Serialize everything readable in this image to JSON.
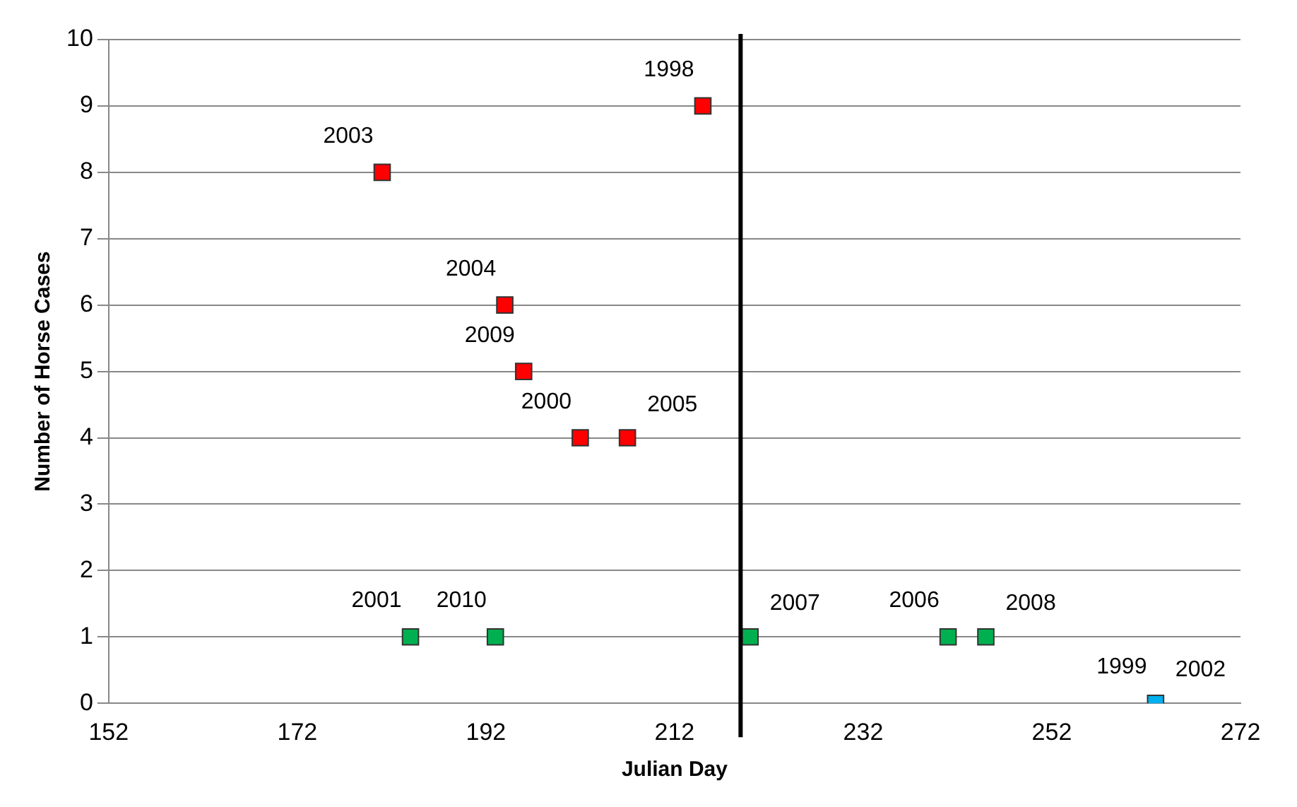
{
  "chart_data": {
    "type": "scatter",
    "xlabel": "Julian Day",
    "ylabel": "Number of Horse Cases",
    "xlim": [
      152,
      272
    ],
    "xticks": [
      152,
      172,
      192,
      212,
      232,
      252,
      272
    ],
    "ylim": [
      0,
      10
    ],
    "yticks": [
      0,
      1,
      2,
      3,
      4,
      5,
      6,
      7,
      8,
      9,
      10
    ],
    "grid": "y",
    "legend": false,
    "marker": "square",
    "series": [
      {
        "color": "#ff0000",
        "x": [
          181,
          215,
          194,
          196,
          202,
          207
        ],
        "values": [
          8,
          9,
          6,
          5,
          4,
          4
        ]
      },
      {
        "color": "#00b050",
        "x": [
          184,
          193,
          220,
          241,
          245
        ],
        "values": [
          1,
          1,
          1,
          1,
          1
        ]
      },
      {
        "color": "#00b0f0",
        "x": [
          263
        ],
        "values": [
          0
        ]
      }
    ],
    "ref_lines": [
      {
        "axis": "x",
        "value": 219,
        "color": "#000000"
      }
    ],
    "annotations": [
      {
        "text": "2003",
        "x": 181,
        "y": 8
      },
      {
        "text": "1998",
        "x": 215,
        "y": 9
      },
      {
        "text": "2004",
        "x": 194,
        "y": 6
      },
      {
        "text": "2009",
        "x": 196,
        "y": 5
      },
      {
        "text": "2000",
        "x": 202,
        "y": 4
      },
      {
        "text": "2005",
        "x": 207,
        "y": 4
      },
      {
        "text": "2001",
        "x": 184,
        "y": 1
      },
      {
        "text": "2010",
        "x": 193,
        "y": 1
      },
      {
        "text": "2007",
        "x": 220,
        "y": 1
      },
      {
        "text": "2006",
        "x": 241,
        "y": 1
      },
      {
        "text": "2008",
        "x": 245,
        "y": 1
      },
      {
        "text": "1999",
        "x": 263,
        "y": 0
      },
      {
        "text": "2002",
        "x": 263,
        "y": 0
      }
    ]
  }
}
